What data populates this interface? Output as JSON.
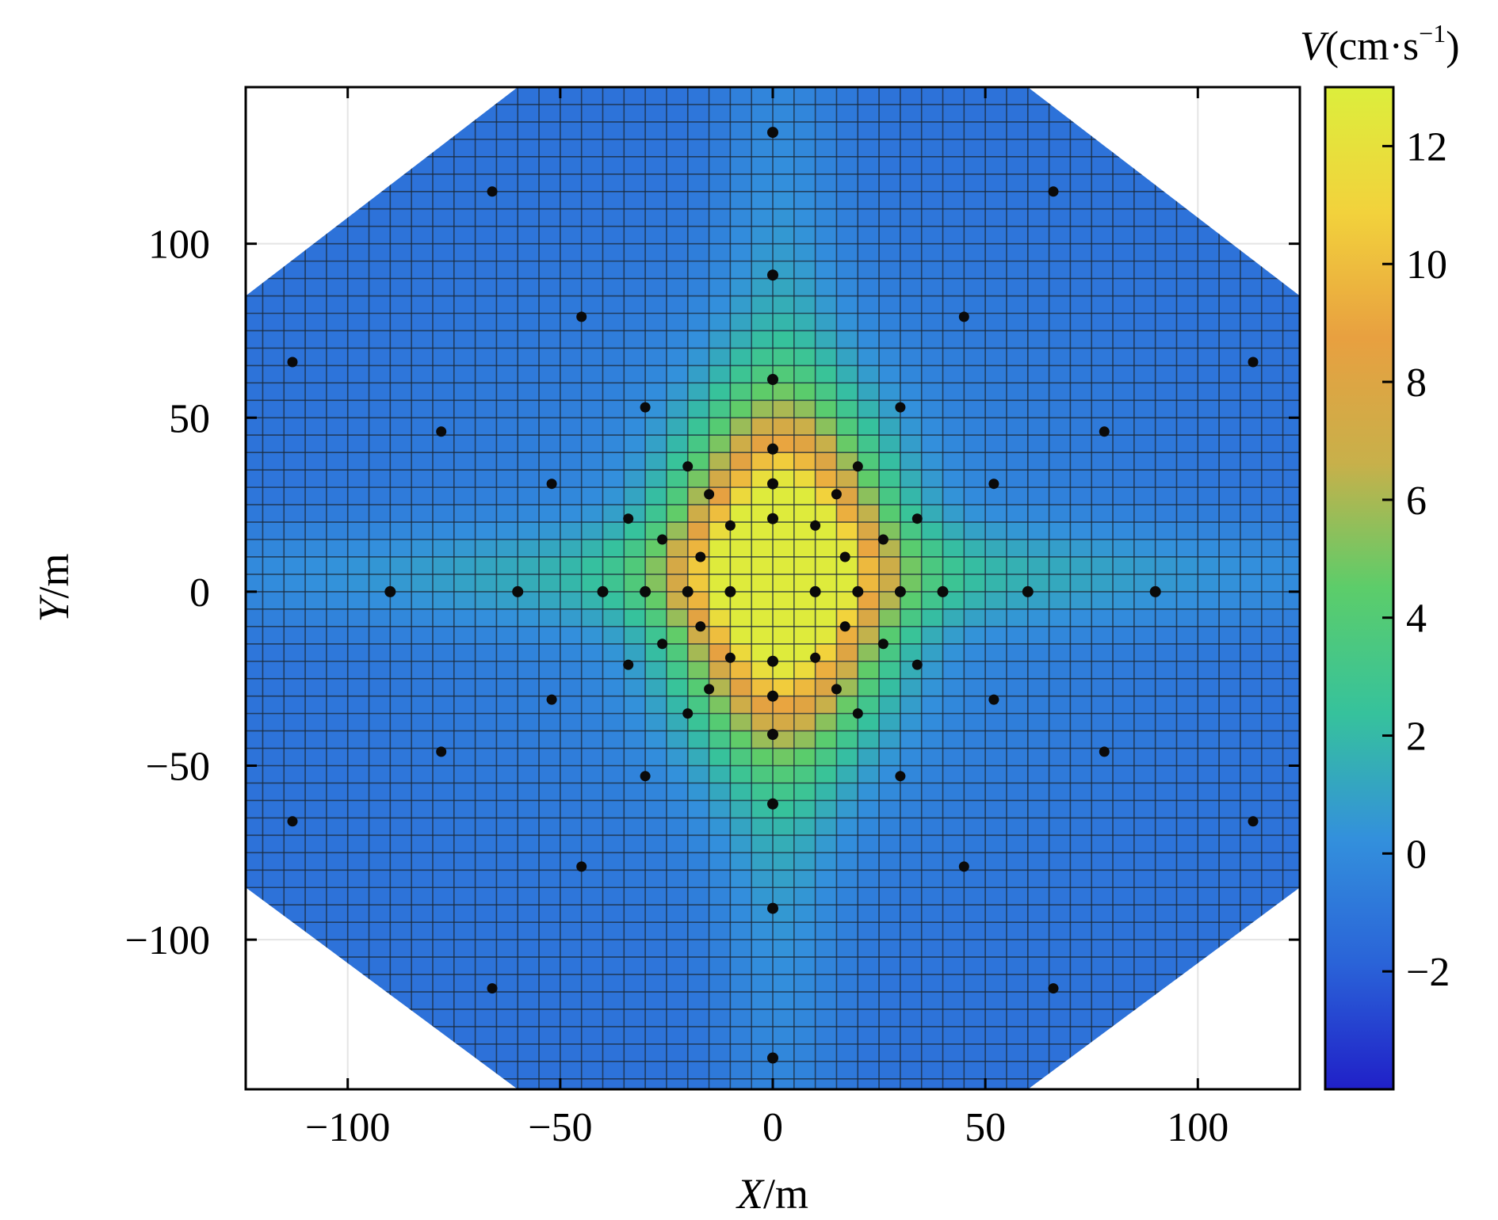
{
  "chart_data": {
    "type": "heatmap",
    "x_label": {
      "var": "X",
      "unit": "/m"
    },
    "y_label": {
      "var": "Y",
      "unit": "/m"
    },
    "colorbar_label": {
      "var": "V",
      "unit": "(cm·s",
      "exp": "−1",
      "close": ")"
    },
    "xlim": [
      -124,
      124
    ],
    "ylim": [
      -143,
      145
    ],
    "x_ticks": [
      -100,
      -50,
      0,
      50,
      100
    ],
    "x_tick_labels": [
      "−100",
      "−50",
      "0",
      "50",
      "100"
    ],
    "y_ticks": [
      -100,
      -50,
      0,
      50,
      100
    ],
    "y_tick_labels": [
      "−100",
      "−50",
      "0",
      "50",
      "100"
    ],
    "colorbar_range": [
      -4,
      13
    ],
    "colorbar_ticks": [
      -2,
      0,
      2,
      4,
      6,
      8,
      10,
      12
    ],
    "colorbar_tick_labels": [
      "−2",
      "0",
      "2",
      "4",
      "6",
      "8",
      "10",
      "12"
    ],
    "grid": true,
    "colormap": [
      "#2020c8",
      "#2a63d8",
      "#3390dc",
      "#36c29c",
      "#5ccd6a",
      "#c8b04a",
      "#e8a040",
      "#f2d23c",
      "#dcee3c"
    ],
    "grid_cell_size": 5,
    "field_description": "velocity field peaks (~13 cm/s) at center and decays radially, with cross-shaped arms along the X and Y axes",
    "peak": {
      "x": 2,
      "y": 5,
      "value": 12.8
    },
    "domain_boundary": [
      [
        -124,
        85
      ],
      [
        -60,
        145
      ],
      [
        60,
        145
      ],
      [
        124,
        85
      ],
      [
        124,
        -85
      ],
      [
        60,
        -143
      ],
      [
        -60,
        -143
      ],
      [
        -124,
        -85
      ]
    ],
    "points": [
      [
        0,
        132
      ],
      [
        -66,
        115
      ],
      [
        66,
        115
      ],
      [
        0,
        91
      ],
      [
        -45,
        79
      ],
      [
        45,
        79
      ],
      [
        -113,
        66
      ],
      [
        113,
        66
      ],
      [
        0,
        61
      ],
      [
        -30,
        53
      ],
      [
        30,
        53
      ],
      [
        -78,
        46
      ],
      [
        78,
        46
      ],
      [
        0,
        41
      ],
      [
        -20,
        36
      ],
      [
        20,
        36
      ],
      [
        -52,
        31
      ],
      [
        52,
        31
      ],
      [
        0,
        31
      ],
      [
        -15,
        28
      ],
      [
        15,
        28
      ],
      [
        -34,
        21
      ],
      [
        34,
        21
      ],
      [
        0,
        21
      ],
      [
        -10,
        19
      ],
      [
        10,
        19
      ],
      [
        -26,
        15
      ],
      [
        26,
        15
      ],
      [
        -17,
        10
      ],
      [
        17,
        10
      ],
      [
        -90,
        0
      ],
      [
        -60,
        0
      ],
      [
        -40,
        0
      ],
      [
        -30,
        0
      ],
      [
        -20,
        0
      ],
      [
        -10,
        0
      ],
      [
        10,
        0
      ],
      [
        20,
        0
      ],
      [
        30,
        0
      ],
      [
        40,
        0
      ],
      [
        60,
        0
      ],
      [
        90,
        0
      ],
      [
        -17,
        -10
      ],
      [
        17,
        -10
      ],
      [
        -26,
        -15
      ],
      [
        26,
        -15
      ],
      [
        -10,
        -19
      ],
      [
        10,
        -19
      ],
      [
        0,
        -20
      ],
      [
        -34,
        -21
      ],
      [
        34,
        -21
      ],
      [
        -15,
        -28
      ],
      [
        15,
        -28
      ],
      [
        0,
        -30
      ],
      [
        -52,
        -31
      ],
      [
        52,
        -31
      ],
      [
        -20,
        -35
      ],
      [
        20,
        -35
      ],
      [
        0,
        -41
      ],
      [
        -78,
        -46
      ],
      [
        78,
        -46
      ],
      [
        -30,
        -53
      ],
      [
        30,
        -53
      ],
      [
        0,
        -61
      ],
      [
        -113,
        -66
      ],
      [
        113,
        -66
      ],
      [
        -45,
        -79
      ],
      [
        45,
        -79
      ],
      [
        0,
        -91
      ],
      [
        -66,
        -114
      ],
      [
        66,
        -114
      ],
      [
        0,
        -134
      ]
    ]
  }
}
